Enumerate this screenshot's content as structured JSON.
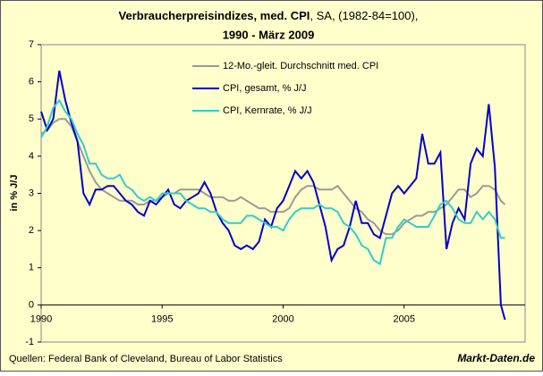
{
  "chart_data": {
    "type": "line",
    "title": "Verbraucherpreisindizes, med. CPI",
    "title_suffix": ", SA, (1982-84=100),",
    "subtitle": "1990 - März 2009",
    "y_label": "in % J/J",
    "source": "Quellen: Federal Bank of Cleveland, Bureau of Labor Statistics",
    "brand": "Markt-Daten.de",
    "xlim": [
      1990,
      2010
    ],
    "xticks": [
      1990,
      1995,
      2000,
      2005
    ],
    "ylim": [
      -1,
      7
    ],
    "yticks": [
      -1,
      0,
      1,
      2,
      3,
      4,
      5,
      6,
      7
    ],
    "legend": "top-center",
    "x": [
      1990,
      1990.25,
      1990.5,
      1990.75,
      1991,
      1991.25,
      1991.5,
      1991.75,
      1992,
      1992.25,
      1992.5,
      1992.75,
      1993,
      1993.25,
      1993.5,
      1993.75,
      1994,
      1994.25,
      1994.5,
      1994.75,
      1995,
      1995.25,
      1995.5,
      1995.75,
      1996,
      1996.25,
      1996.5,
      1996.75,
      1997,
      1997.25,
      1997.5,
      1997.75,
      1998,
      1998.25,
      1998.5,
      1998.75,
      1999,
      1999.25,
      1999.5,
      1999.75,
      2000,
      2000.25,
      2000.5,
      2000.75,
      2001,
      2001.25,
      2001.5,
      2001.75,
      2002,
      2002.25,
      2002.5,
      2002.75,
      2003,
      2003.25,
      2003.5,
      2003.75,
      2004,
      2004.25,
      2004.5,
      2004.75,
      2005,
      2005.25,
      2005.5,
      2005.75,
      2006,
      2006.25,
      2006.5,
      2006.75,
      2007,
      2007.25,
      2007.5,
      2007.75,
      2008,
      2008.25,
      2008.5,
      2008.75,
      2009,
      2009.17
    ],
    "series": [
      {
        "name": "12-Mo.-gleit. Durchschnitt med. CPI",
        "color": "#999999",
        "values": [
          4.6,
          4.7,
          4.9,
          5.0,
          5.0,
          4.8,
          4.4,
          4.0,
          3.6,
          3.3,
          3.1,
          3.0,
          2.9,
          2.8,
          2.8,
          2.8,
          2.7,
          2.7,
          2.8,
          2.8,
          2.9,
          3.0,
          3.0,
          3.1,
          3.1,
          3.1,
          3.1,
          3.0,
          2.9,
          2.9,
          2.9,
          2.8,
          2.8,
          2.9,
          2.8,
          2.7,
          2.6,
          2.6,
          2.5,
          2.5,
          2.5,
          2.6,
          2.9,
          3.1,
          3.2,
          3.2,
          3.1,
          3.1,
          3.1,
          3.2,
          3.0,
          2.8,
          2.6,
          2.5,
          2.3,
          2.2,
          2.0,
          1.9,
          1.9,
          2.0,
          2.2,
          2.3,
          2.4,
          2.4,
          2.5,
          2.5,
          2.6,
          2.7,
          2.9,
          3.1,
          3.1,
          2.9,
          3.0,
          3.2,
          3.2,
          3.1,
          2.8,
          2.7
        ]
      },
      {
        "name": "CPI, gesamt, % J/J",
        "color": "#0000cc",
        "values": [
          5.2,
          4.7,
          5.0,
          6.3,
          5.5,
          4.9,
          4.4,
          3.0,
          2.7,
          3.1,
          3.1,
          3.2,
          3.2,
          3.0,
          2.8,
          2.7,
          2.5,
          2.4,
          2.8,
          2.7,
          2.9,
          3.1,
          2.7,
          2.6,
          2.8,
          2.9,
          3.0,
          3.3,
          3.0,
          2.5,
          2.2,
          2.0,
          1.6,
          1.5,
          1.6,
          1.5,
          1.7,
          2.3,
          2.1,
          2.6,
          2.8,
          3.2,
          3.6,
          3.4,
          3.6,
          3.3,
          2.7,
          2.1,
          1.2,
          1.5,
          1.6,
          2.1,
          2.8,
          2.2,
          2.2,
          1.9,
          1.8,
          2.4,
          3.0,
          3.2,
          3.0,
          3.2,
          3.4,
          4.6,
          3.8,
          3.8,
          4.1,
          1.5,
          2.2,
          2.6,
          2.3,
          3.8,
          4.2,
          4.0,
          5.4,
          3.7,
          0.0,
          -0.4
        ]
      },
      {
        "name": "CPI, Kernrate, % J/J",
        "color": "#33cccc",
        "values": [
          4.5,
          4.8,
          5.3,
          5.5,
          5.2,
          5.0,
          4.6,
          4.3,
          3.8,
          3.8,
          3.5,
          3.4,
          3.4,
          3.5,
          3.2,
          3.1,
          2.9,
          2.8,
          2.9,
          2.8,
          3.0,
          3.0,
          3.0,
          3.0,
          2.8,
          2.7,
          2.6,
          2.6,
          2.5,
          2.5,
          2.3,
          2.2,
          2.2,
          2.2,
          2.4,
          2.4,
          2.3,
          2.2,
          2.1,
          2.1,
          2.0,
          2.3,
          2.5,
          2.6,
          2.6,
          2.6,
          2.7,
          2.6,
          2.6,
          2.5,
          2.2,
          2.1,
          1.9,
          1.6,
          1.5,
          1.2,
          1.1,
          1.8,
          1.8,
          2.1,
          2.3,
          2.2,
          2.1,
          2.1,
          2.1,
          2.4,
          2.7,
          2.8,
          2.6,
          2.3,
          2.2,
          2.2,
          2.5,
          2.3,
          2.5,
          2.3,
          1.8,
          1.8
        ]
      }
    ]
  }
}
